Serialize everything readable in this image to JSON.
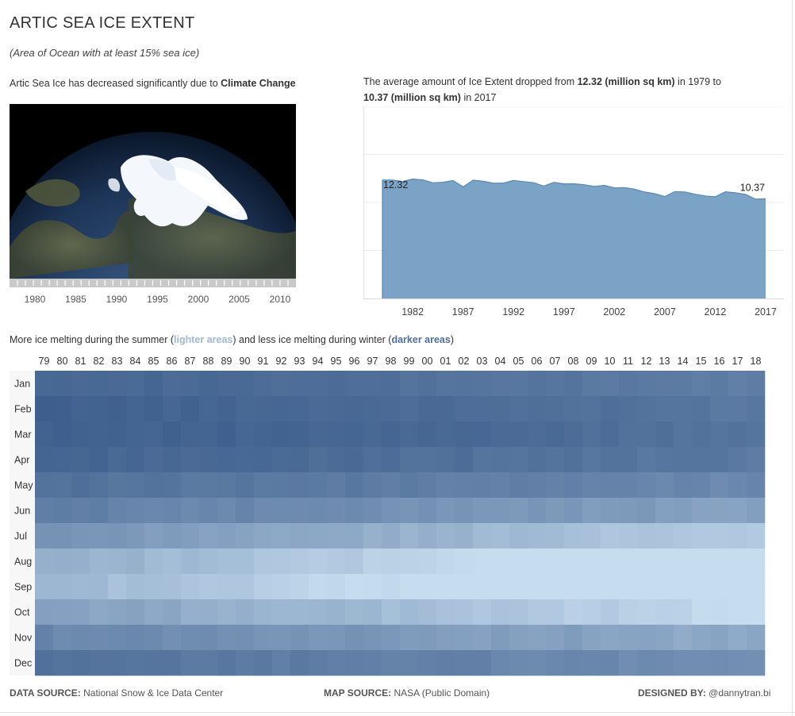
{
  "title": "ARTIC SEA ICE EXTENT",
  "subtitle": "(Area of Ocean with at least 15% sea ice)",
  "map_panel": {
    "caption_prefix": "Artic Sea Ice has decreased significantly due to ",
    "caption_bold": "Climate Change",
    "slider_ticks": [
      "1980",
      "1985",
      "1990",
      "1995",
      "2000",
      "2005",
      "2010"
    ],
    "slider_selected": "2010"
  },
  "area_panel": {
    "caption_part1": "The average amount of Ice Extent dropped from ",
    "caption_bold1": "12.32 (million sq km)",
    "caption_part2": " in 1979 to ",
    "caption_bold2": "10.37 (million sq km)",
    "caption_part3": " in 2017"
  },
  "heatmap_panel": {
    "caption_part1": "More ice melting during the summer (",
    "caption_light": "lighter areas",
    "caption_part2": ") and less ice melting during winter (",
    "caption_dark": "darker areas",
    "caption_part3": ")"
  },
  "footer": {
    "data_label": "DATA SOURCE:",
    "data_value": " National Snow & Ice Data Center",
    "map_label": "MAP SOURCE:",
    "map_value": " NASA (Public Domain)",
    "designer_label": "DESIGNED BY:",
    "designer_value": " @dannytran.bi"
  },
  "colors": {
    "area_fill": "#7aa3c6",
    "area_stroke": "#5a88b3",
    "heat_dark": "#3e5f8d",
    "heat_light": "#c6dcef",
    "slider_handle": "#4c6fa8"
  },
  "chart_data": [
    {
      "type": "area",
      "x": [
        1979,
        1980,
        1981,
        1982,
        1983,
        1984,
        1985,
        1986,
        1987,
        1988,
        1989,
        1990,
        1991,
        1992,
        1993,
        1994,
        1995,
        1996,
        1997,
        1998,
        1999,
        2000,
        2001,
        2002,
        2003,
        2004,
        2005,
        2006,
        2007,
        2008,
        2009,
        2010,
        2011,
        2012,
        2013,
        2014,
        2015,
        2016,
        2017
      ],
      "values": [
        12.32,
        12.33,
        12.18,
        12.44,
        12.35,
        12.04,
        12.1,
        12.27,
        11.62,
        12.31,
        12.2,
        11.99,
        12.02,
        12.29,
        12.16,
        12.05,
        11.7,
        12.09,
        11.93,
        11.94,
        11.84,
        11.67,
        11.78,
        11.51,
        11.54,
        11.38,
        11.08,
        10.92,
        10.61,
        11.13,
        11.09,
        10.85,
        10.67,
        10.59,
        11.11,
        11.0,
        10.84,
        10.34,
        10.37
      ],
      "annotations": [
        {
          "x": 1979,
          "label": "12.32"
        },
        {
          "x": 2017,
          "label": "10.37"
        }
      ],
      "x_ticks": [
        "1982",
        "1987",
        "1992",
        "1997",
        "2002",
        "2007",
        "2012",
        "2017"
      ],
      "ylim": [
        0,
        20
      ],
      "grid": true
    },
    {
      "type": "heatmap",
      "columns": [
        "79",
        "80",
        "81",
        "82",
        "83",
        "84",
        "85",
        "86",
        "87",
        "88",
        "89",
        "90",
        "91",
        "92",
        "93",
        "94",
        "95",
        "96",
        "97",
        "98",
        "99",
        "00",
        "01",
        "02",
        "03",
        "04",
        "05",
        "06",
        "07",
        "08",
        "09",
        "10",
        "11",
        "12",
        "13",
        "14",
        "15",
        "16",
        "17",
        "18"
      ],
      "rows": [
        "Jan",
        "Feb",
        "Mar",
        "Apr",
        "May",
        "Jun",
        "Jul",
        "Aug",
        "Sep",
        "Oct",
        "Nov",
        "Dec"
      ],
      "row_base": [
        15.4,
        16.2,
        16.3,
        15.5,
        13.9,
        12.4,
        10.3,
        8.0,
        7.3,
        9.2,
        11.6,
        13.7
      ],
      "row_trend": [
        -0.035,
        -0.035,
        -0.03,
        -0.03,
        -0.03,
        -0.04,
        -0.06,
        -0.07,
        -0.08,
        -0.06,
        -0.04,
        -0.035
      ],
      "value_range": [
        4.0,
        16.6
      ]
    }
  ]
}
